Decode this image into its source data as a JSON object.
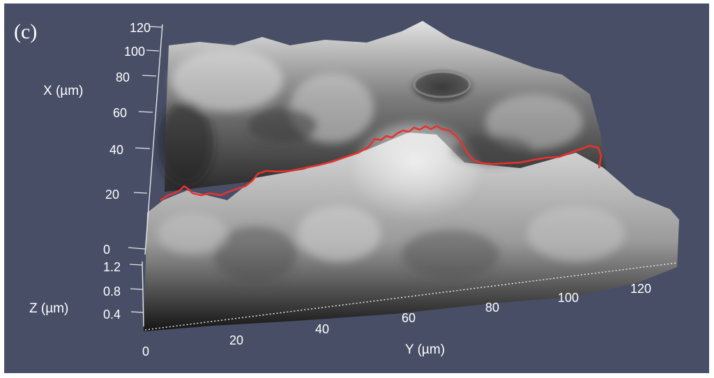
{
  "figure": {
    "panel_label": "(c)",
    "background_color": "#474e66",
    "profile_line_color": "#e8322e",
    "surface_colormap": "grayscale"
  },
  "axes": {
    "x": {
      "title": "X (µm)",
      "ticks": [
        "0",
        "20",
        "40",
        "60",
        "80",
        "100",
        "120"
      ]
    },
    "y": {
      "title": "Y (µm)",
      "ticks": [
        "0",
        "20",
        "40",
        "60",
        "80",
        "100",
        "120"
      ]
    },
    "z": {
      "title": "Z (µm)",
      "ticks": [
        "0.4",
        "0.8",
        "1.2"
      ]
    }
  }
}
